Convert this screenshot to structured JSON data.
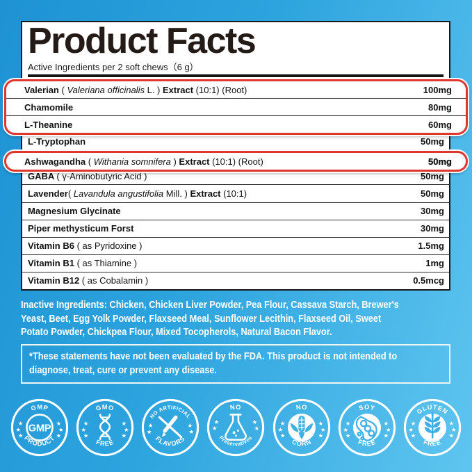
{
  "colors": {
    "background_top": "#1e92d3",
    "background_bottom": "#5fc5f0",
    "panel_bg": "#ffffff",
    "border_black": "#191919",
    "highlight_red": "#df362d",
    "title_text": "#251b16",
    "text_white": "#ffffff",
    "badge_icon_blue": "#3fb0e6"
  },
  "header": {
    "title": "Product Facts",
    "subtitle": "Active Ingredients per 2 soft chews（6 g）"
  },
  "table": {
    "rows": [
      {
        "segments": [
          {
            "t": "Valerian ",
            "b": true
          },
          {
            "t": "( "
          },
          {
            "t": "Valeriana officinalis",
            "i": true
          },
          {
            "t": " L. ) "
          },
          {
            "t": "Extract",
            "b": true
          },
          {
            "t": " (10:1) (Root)"
          }
        ],
        "value": "100mg"
      },
      {
        "segments": [
          {
            "t": "Chamomile",
            "b": true
          }
        ],
        "value": "80mg"
      },
      {
        "segments": [
          {
            "t": "L-Theanine",
            "b": true
          }
        ],
        "value": "60mg"
      },
      {
        "segments": [
          {
            "t": "L-Tryptophan",
            "b": true
          }
        ],
        "value": "50mg"
      },
      {
        "segments": [
          {
            "t": "Ashwagandha ",
            "b": true
          },
          {
            "t": "( "
          },
          {
            "t": "Withania somnifera",
            "i": true
          },
          {
            "t": " ) "
          },
          {
            "t": "Extract",
            "b": true
          },
          {
            "t": " (10:1) (Root)"
          }
        ],
        "value": "50mg",
        "value_strong": true
      },
      {
        "segments": [
          {
            "t": "GABA ",
            "b": true
          },
          {
            "t": "( γ-Aminobutyric Acid )"
          }
        ],
        "value": "50mg"
      },
      {
        "segments": [
          {
            "t": "Lavender",
            "b": true
          },
          {
            "t": "( "
          },
          {
            "t": "Lavandula angustifolia",
            "i": true
          },
          {
            "t": " Mill. ) "
          },
          {
            "t": "Extract",
            "b": true
          },
          {
            "t": " (10:1)"
          }
        ],
        "value": "50mg"
      },
      {
        "segments": [
          {
            "t": "Magnesium Glycinate",
            "b": true
          }
        ],
        "value": "30mg"
      },
      {
        "segments": [
          {
            "t": "Piper methysticum Forst",
            "b": true
          }
        ],
        "value": "30mg"
      },
      {
        "segments": [
          {
            "t": "Vitamin B6 ",
            "b": true
          },
          {
            "t": "( as Pyridoxine )"
          }
        ],
        "value": "1.5mg"
      },
      {
        "segments": [
          {
            "t": "Vitamin B1 ",
            "b": true
          },
          {
            "t": "( as Thiamine )"
          }
        ],
        "value": "1mg"
      },
      {
        "segments": [
          {
            "t": "Vitamin B12 ",
            "b": true
          },
          {
            "t": "( as Cobalamin )"
          }
        ],
        "value": "0.5mcg"
      }
    ],
    "highlight_groups": [
      {
        "row_indexes": [
          0,
          1,
          2
        ]
      },
      {
        "row_indexes": [
          4
        ]
      }
    ]
  },
  "inactive": {
    "lines": [
      "Inactive Ingredients: Chicken, Chicken Liver Powder, Pea Flour, Cassava Starch, Brewer's",
      "Yeast, Beet, Egg Yolk Powder, Flaxseed Meal, Sunflower Lecithin, Flaxseed Oil, Sweet",
      "Potato Powder, Chickpea Flour, Mixed Tocopherols, Natural Bacon Flavor."
    ]
  },
  "disclaimer": {
    "lines": [
      "*These statements have not been evaluated by the FDA. This product is not intended to",
      "diagnose, treat, cure or prevent any disease."
    ]
  },
  "badges": [
    {
      "top": "GMP",
      "bottom": "PRODUCT",
      "center": "GMP",
      "icon": "gmp-seal"
    },
    {
      "top": "GMO",
      "bottom": "FREE",
      "icon": "dna"
    },
    {
      "top": "NO ARTIFICIAL",
      "bottom": "FLAVORS",
      "icon": "crossed-pen"
    },
    {
      "top": "NO",
      "bottom": "Preservatives",
      "icon": "flask"
    },
    {
      "top": "NO",
      "bottom": "CORN",
      "icon": "corn"
    },
    {
      "top": "SOY",
      "bottom": "FREE",
      "icon": "soybean"
    },
    {
      "top": "GLUTEN",
      "bottom": "FREE",
      "icon": "wheat"
    }
  ]
}
